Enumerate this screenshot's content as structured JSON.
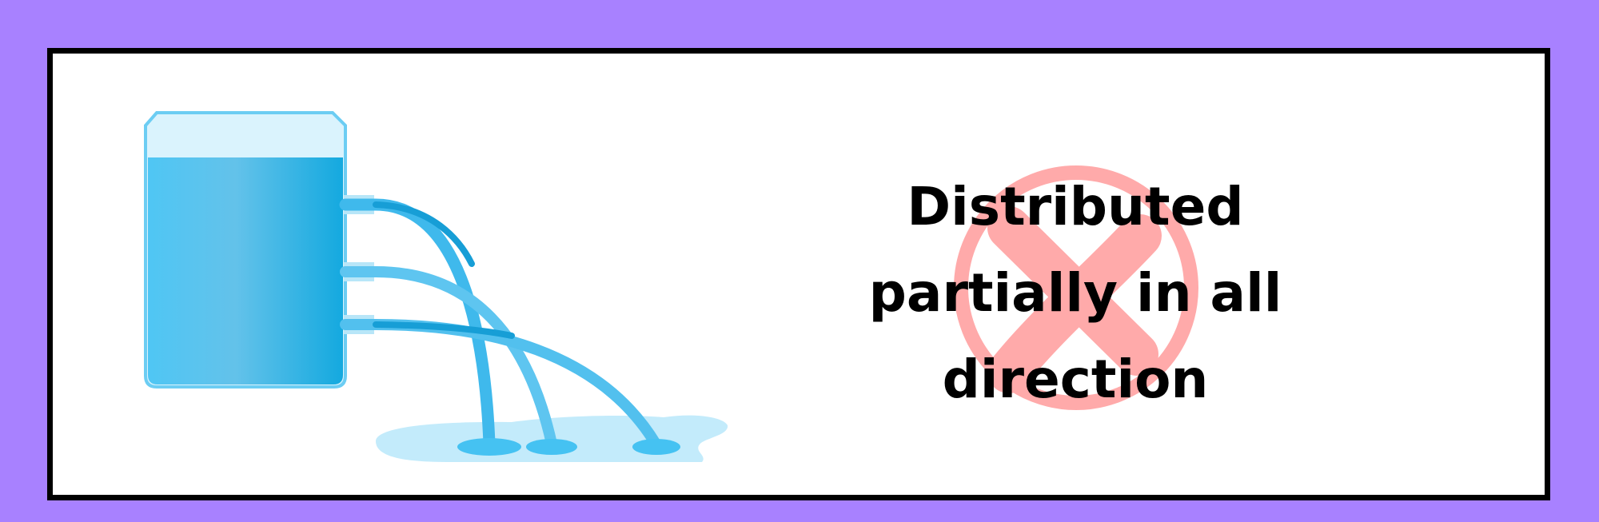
{
  "caption": {
    "lines": [
      "Distributed",
      "partially in all",
      "direction"
    ]
  },
  "icons": {
    "container": "water-container-icon",
    "pipes": "outlet-pipe-icon",
    "streams": "water-stream-icon",
    "puddle": "water-puddle-icon",
    "cross": "cross-mark-icon"
  },
  "colors": {
    "background": "#a881ff",
    "panel": "#ffffff",
    "border": "#000000",
    "water": "#35b8eb",
    "water_light": "#daf3fd",
    "puddle": "#c3ebfb",
    "cross": "#ffaaaa"
  }
}
